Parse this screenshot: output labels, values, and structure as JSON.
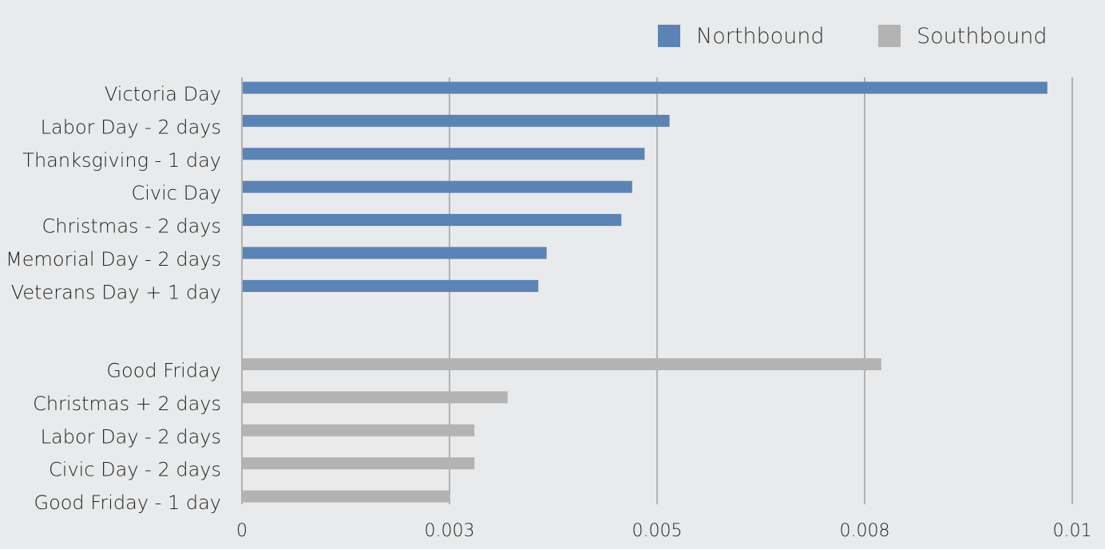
{
  "chart_data": {
    "type": "bar",
    "orientation": "horizontal",
    "title": "",
    "xlabel": "",
    "ylabel": "",
    "xlim": [
      0,
      0.01
    ],
    "x_ticks": [
      0,
      0.0025,
      0.005,
      0.0075,
      0.01
    ],
    "x_tick_labels": [
      "0",
      "0.003",
      "0.005",
      "0.008",
      "0.01"
    ],
    "grid": "vertical",
    "legend_position": "top-right",
    "series": [
      {
        "name": "Northbound",
        "color": "#5b84b6",
        "categories": [
          "Victoria Day",
          "Labor Day - 2 days",
          "Thanksgiving - 1 day",
          "Civic Day",
          "Christmas - 2 days",
          "Memorial Day - 2 days",
          "Veterans Day + 1 day"
        ],
        "values": [
          0.0097,
          0.00515,
          0.00485,
          0.0047,
          0.00457,
          0.00367,
          0.00357
        ]
      },
      {
        "name": "Southbound",
        "color": "#b3b3b3",
        "categories": [
          "Good Friday",
          "Christmas + 2 days",
          "Labor Day - 2 days",
          "Civic Day - 2 days",
          "Good Friday - 1 day"
        ],
        "values": [
          0.0077,
          0.0032,
          0.0028,
          0.0028,
          0.0025
        ]
      }
    ]
  }
}
